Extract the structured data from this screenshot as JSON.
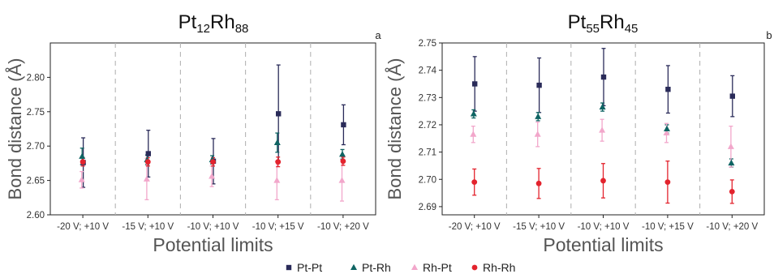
{
  "legend": {
    "items": [
      {
        "name": "Pt-Pt",
        "marker": "square",
        "color": "#2a2b59"
      },
      {
        "name": "Pt-Rh",
        "marker": "triangle",
        "color": "#0f6463"
      },
      {
        "name": "Rh-Pt",
        "marker": "triangle",
        "color": "#f2a7cb"
      },
      {
        "name": "Rh-Rh",
        "marker": "circle",
        "color": "#e3232d"
      }
    ],
    "placement": "bottom-center"
  },
  "chart_data": [
    {
      "type": "scatter",
      "panel_label": "a",
      "title_parts": [
        {
          "t": "Pt",
          "sub": false
        },
        {
          "t": "12",
          "sub": true
        },
        {
          "t": "Rh",
          "sub": false
        },
        {
          "t": "88",
          "sub": true
        }
      ],
      "xlabel": "Potential limits",
      "ylabel": "Bond distance (Å)",
      "ylim": [
        2.6,
        2.85
      ],
      "yticks": [
        "2.60",
        "2.65",
        "2.70",
        "2.75",
        "2.80"
      ],
      "categories": [
        "-20 V; +10 V",
        "-15 V; +10 V",
        "-10 V; +10 V",
        "-10 V; +15 V",
        "-10 V; +20 V"
      ],
      "category_separators": "dashed-vertical",
      "series": [
        {
          "name": "Pt-Pt",
          "values": [
            2.676,
            2.689,
            2.678,
            2.747,
            2.731
          ],
          "err": [
            0.036,
            0.034,
            0.033,
            0.071,
            0.029
          ]
        },
        {
          "name": "Pt-Rh",
          "values": [
            2.685,
            2.68,
            2.68,
            2.705,
            2.688
          ],
          "err": [
            0.012,
            0.007,
            0.006,
            0.014,
            0.007
          ]
        },
        {
          "name": "Rh-Pt",
          "values": [
            2.651,
            2.652,
            2.656,
            2.65,
            2.65
          ],
          "err": [
            0.012,
            0.03,
            0.015,
            0.028,
            0.03
          ]
        },
        {
          "name": "Rh-Rh",
          "values": [
            2.677,
            2.677,
            2.677,
            2.677,
            2.678
          ],
          "err": [
            0.006,
            0.006,
            0.006,
            0.007,
            0.006
          ]
        }
      ]
    },
    {
      "type": "scatter",
      "panel_label": "b",
      "title_parts": [
        {
          "t": "Pt",
          "sub": false
        },
        {
          "t": "55",
          "sub": true
        },
        {
          "t": "Rh",
          "sub": false
        },
        {
          "t": "45",
          "sub": true
        }
      ],
      "xlabel": "Potential limits",
      "ylabel": "Bond distance (Å)",
      "ylim": [
        2.687,
        2.75
      ],
      "yticks": [
        "2.69",
        "2.70",
        "2.71",
        "2.72",
        "2.73",
        "2.74",
        "2.75"
      ],
      "categories": [
        "-20 V; +10 V",
        "-15 V; +10 V",
        "-10 V; +10 V",
        "-10 V; +15 V",
        "-10 V; +20 V"
      ],
      "category_separators": "dashed-vertical",
      "series": [
        {
          "name": "Pt-Pt",
          "values": [
            2.735,
            2.7345,
            2.7375,
            2.733,
            2.7305
          ],
          "err": [
            0.01,
            0.01,
            0.0105,
            0.0087,
            0.0075
          ]
        },
        {
          "name": "Pt-Rh",
          "values": [
            2.724,
            2.723,
            2.7265,
            2.7185,
            2.706
          ],
          "err": [
            0.0015,
            0.0015,
            0.0015,
            0.0015,
            0.0015
          ]
        },
        {
          "name": "Rh-Pt",
          "values": [
            2.7165,
            2.7165,
            2.718,
            2.717,
            2.712
          ],
          "err": [
            0.003,
            0.0045,
            0.004,
            0.0035,
            0.0075
          ]
        },
        {
          "name": "Rh-Rh",
          "values": [
            2.699,
            2.6985,
            2.6995,
            2.699,
            2.6955
          ],
          "err": [
            0.0048,
            0.0055,
            0.0063,
            0.0077,
            0.0043
          ]
        }
      ]
    }
  ]
}
